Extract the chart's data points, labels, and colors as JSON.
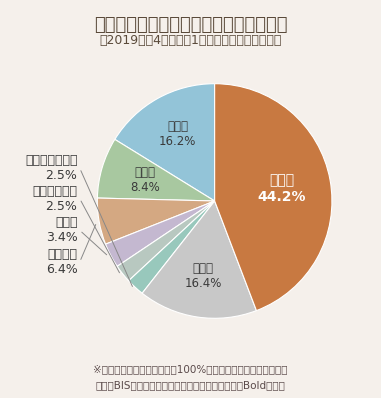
{
  "title": "為替市場における通貨別取引高のシェア",
  "subtitle": "（2019年の4月の月間1日あたりの平均取引高）",
  "footnote1": "※四捨五入の関係で、合計が100%とならない場合があります。",
  "footnote2": "出所：BIS（国際決済銀行）のデータを基に（株）Boldが作成",
  "labels": [
    "米ドル",
    "ユーロ",
    "日本円",
    "英ポンド",
    "豪ドル",
    "カナダ・ドル",
    "スイス・フラン",
    "その他"
  ],
  "values": [
    44.2,
    16.2,
    8.4,
    6.4,
    3.4,
    2.5,
    2.5,
    16.4
  ],
  "colors": [
    "#C87941",
    "#93C4D8",
    "#A8C8A0",
    "#D4A882",
    "#C4B8D0",
    "#98C8BC",
    "#B8D0C8",
    "#C8C8C8"
  ],
  "background_color": "#F5F0EB",
  "title_color": "#5a4a3a",
  "text_color": "#3a3a3a",
  "footnote_color": "#5a4a4a",
  "title_fontsize": 13,
  "subtitle_fontsize": 9,
  "label_fontsize": 9,
  "footnote_fontsize": 7.5
}
